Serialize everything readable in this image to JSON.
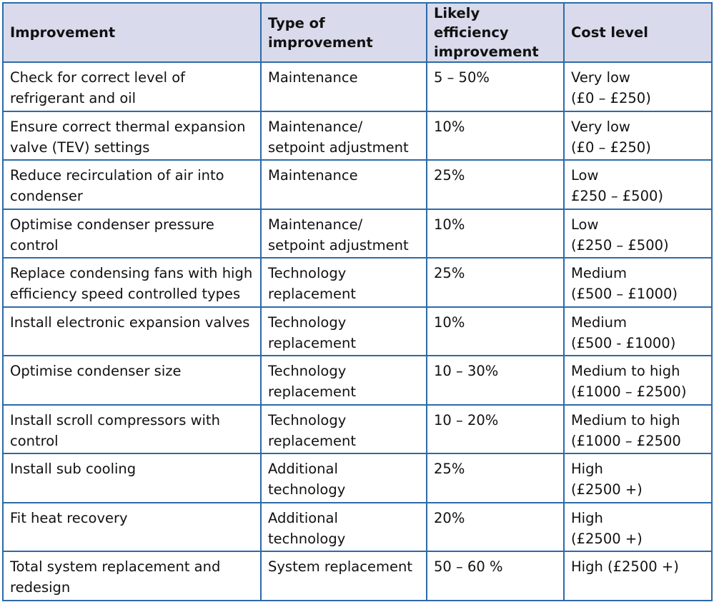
{
  "table": {
    "headers": [
      [
        "Improvement"
      ],
      [
        "Type of",
        "improvement"
      ],
      [
        "Likely efficiency",
        "improvement"
      ],
      [
        "Cost level"
      ]
    ],
    "rows": [
      {
        "improvement": [
          "Check for correct level of",
          "refrigerant and oil"
        ],
        "type": [
          "Maintenance"
        ],
        "efficiency": [
          "5 – 50%"
        ],
        "cost": [
          "Very low",
          "(£0 – £250)"
        ]
      },
      {
        "improvement": [
          "Ensure correct thermal expansion",
          "valve (TEV) settings"
        ],
        "type": [
          "Maintenance/",
          "setpoint adjustment"
        ],
        "efficiency": [
          "10%"
        ],
        "cost": [
          "Very low",
          "(£0 – £250)"
        ]
      },
      {
        "improvement": [
          "Reduce recirculation of air into",
          "condenser"
        ],
        "type": [
          "Maintenance"
        ],
        "efficiency": [
          "25%"
        ],
        "cost": [
          "Low",
          "£250 – £500)"
        ]
      },
      {
        "improvement": [
          "Optimise condenser pressure",
          "control"
        ],
        "type": [
          "Maintenance/",
          "setpoint adjustment"
        ],
        "efficiency": [
          "10%"
        ],
        "cost": [
          "Low",
          "(£250 – £500)"
        ]
      },
      {
        "improvement": [
          "Replace condensing fans with high",
          "efficiency speed controlled types"
        ],
        "type": [
          "Technology",
          "replacement"
        ],
        "efficiency": [
          "25%"
        ],
        "cost": [
          "Medium",
          "(£500 – £1000)"
        ]
      },
      {
        "improvement": [
          "Install electronic expansion valves"
        ],
        "type": [
          "Technology",
          "replacement"
        ],
        "efficiency": [
          "10%"
        ],
        "cost": [
          "Medium",
          "(£500 - £1000)"
        ]
      },
      {
        "improvement": [
          "Optimise condenser size"
        ],
        "type": [
          "Technology",
          "replacement"
        ],
        "efficiency": [
          "10 – 30%"
        ],
        "cost": [
          "Medium to high",
          "(£1000 – £2500)"
        ]
      },
      {
        "improvement": [
          "Install scroll compressors with",
          "control"
        ],
        "type": [
          "Technology",
          "replacement"
        ],
        "efficiency": [
          "10 – 20%"
        ],
        "cost": [
          "Medium to high",
          "(£1000 – £2500"
        ]
      },
      {
        "improvement": [
          "Install sub cooling"
        ],
        "type": [
          "Additional",
          "technology"
        ],
        "efficiency": [
          "25%"
        ],
        "cost": [
          "High",
          "(£2500 +)"
        ]
      },
      {
        "improvement": [
          "Fit heat recovery"
        ],
        "type": [
          "Additional",
          "technology"
        ],
        "efficiency": [
          "20%"
        ],
        "cost": [
          "High",
          "(£2500 +)"
        ]
      },
      {
        "improvement": [
          "Total system replacement and",
          "redesign"
        ],
        "type": [
          "System replacement"
        ],
        "efficiency": [
          "50 – 60 %"
        ],
        "cost": [
          "High (£2500 +)"
        ]
      }
    ]
  }
}
